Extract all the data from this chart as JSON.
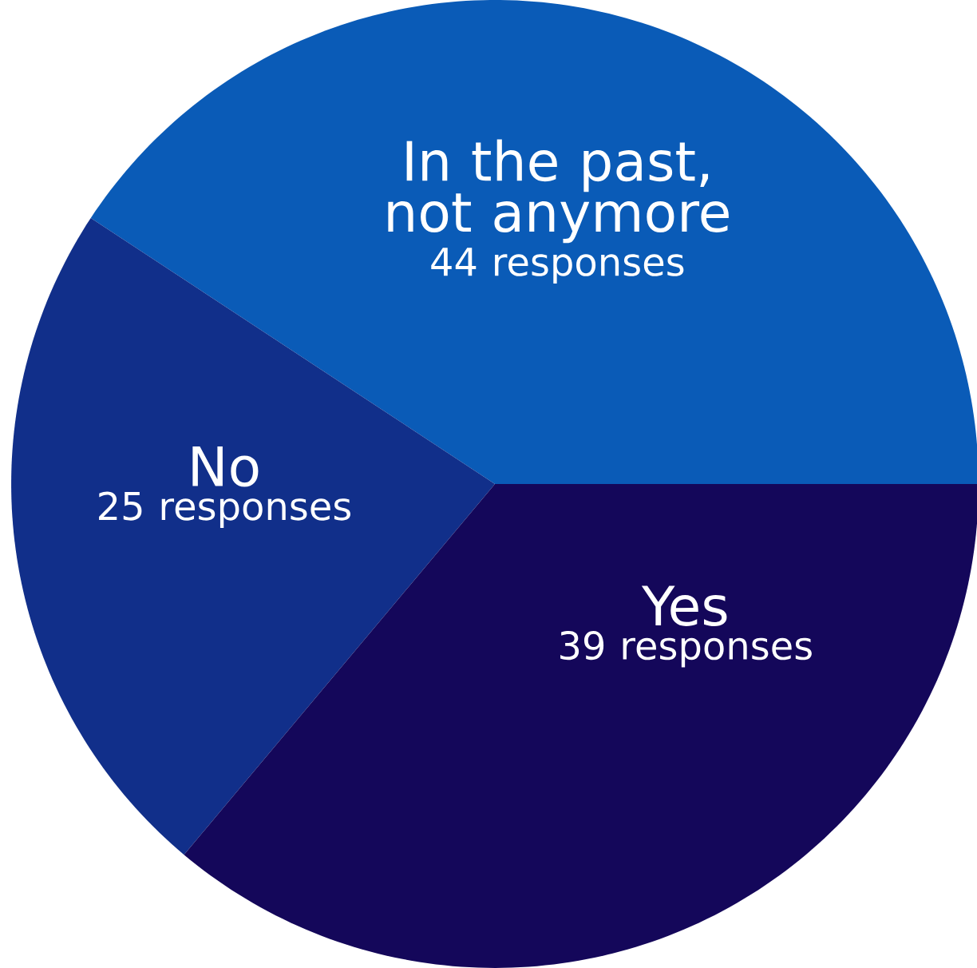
{
  "chart_data": {
    "type": "pie",
    "categories": [
      "In the past, not anymore",
      "No",
      "Yes"
    ],
    "values": [
      44,
      25,
      39
    ],
    "value_labels": [
      "44 responses",
      "25 responses",
      "39 responses"
    ],
    "colors": [
      "#0a5bb7",
      "#112f8a",
      "#14075a"
    ]
  }
}
